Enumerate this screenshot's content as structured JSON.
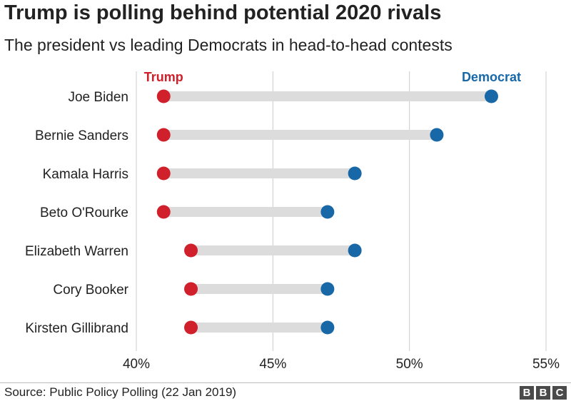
{
  "colors": {
    "trump": "#d0202b",
    "democrat": "#1868a7",
    "bar": "#dcdcdc",
    "grid": "#cccccc"
  },
  "header": {
    "title": "Trump is polling behind potential 2020 rivals",
    "subtitle": "The president vs leading Democrats in head-to-head contests"
  },
  "footer": {
    "source": "Source: Public Policy Polling (22 Jan 2019)",
    "logo": "BBC"
  },
  "chart_data": {
    "type": "dumbbell",
    "title": "Trump is polling behind potential 2020 rivals",
    "subtitle": "The president vs leading Democrats in head-to-head contests",
    "legend": [
      "Trump",
      "Democrat"
    ],
    "categories": [
      "Joe Biden",
      "Bernie Sanders",
      "Kamala Harris",
      "Beto O'Rourke",
      "Elizabeth Warren",
      "Cory Booker",
      "Kirsten Gillibrand"
    ],
    "series": [
      {
        "name": "Trump",
        "values": [
          41,
          41,
          41,
          41,
          42,
          42,
          42
        ]
      },
      {
        "name": "Democrat",
        "values": [
          53,
          51,
          48,
          47,
          48,
          47,
          47
        ]
      }
    ],
    "xlim": [
      40,
      55
    ],
    "xticks": [
      40,
      45,
      50,
      55
    ],
    "xtick_labels": [
      "40%",
      "45%",
      "50%",
      "55%"
    ],
    "grid": true
  }
}
